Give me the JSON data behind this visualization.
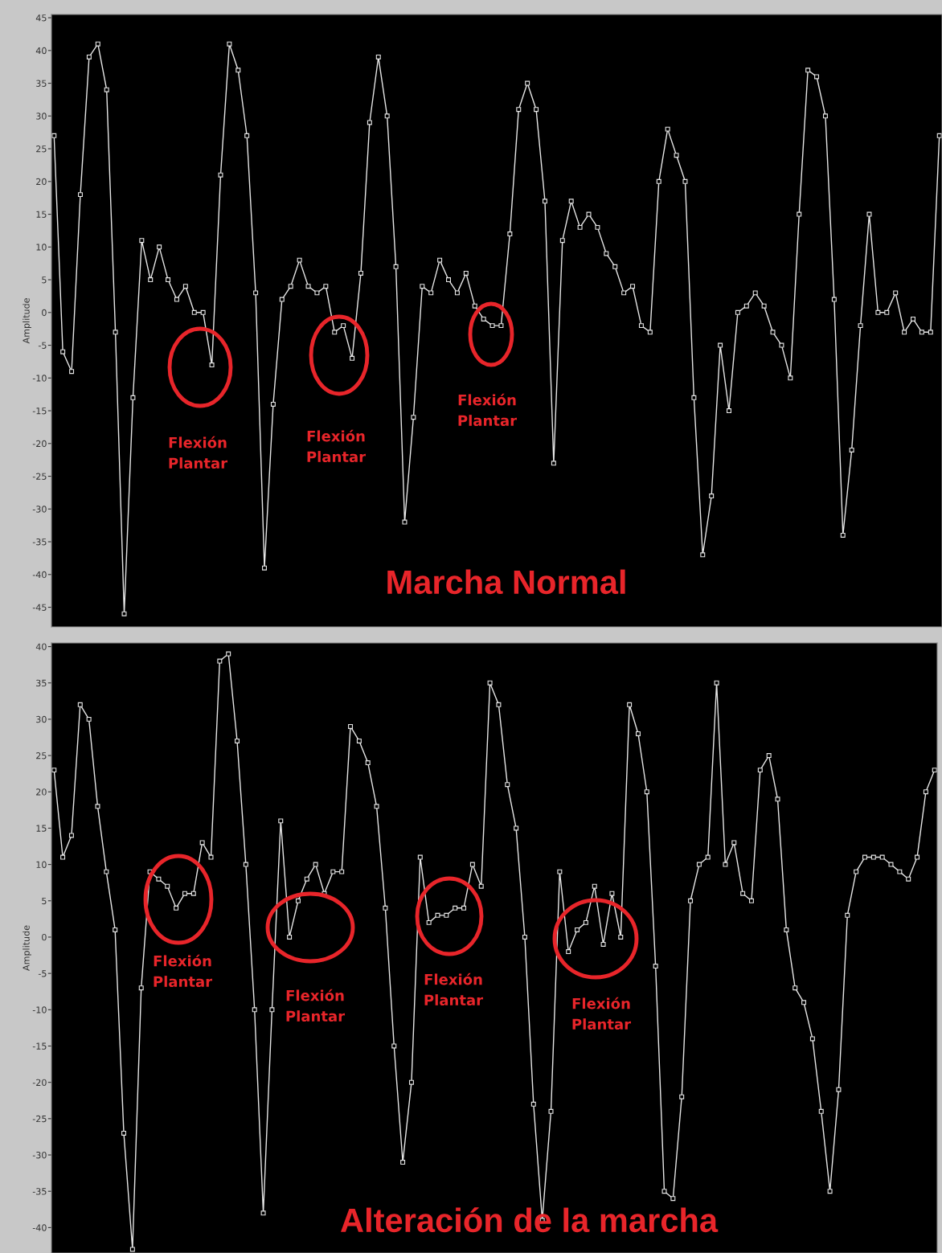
{
  "chart_data": [
    {
      "type": "line",
      "title": "Marcha Normal",
      "ylabel": "Amplitude",
      "categories": [
        null,
        null,
        null,
        null,
        null,
        null,
        null,
        null,
        null,
        null,
        null,
        null,
        null,
        null,
        null,
        null,
        null,
        null,
        null,
        null,
        null,
        null,
        null,
        null,
        null,
        null,
        null,
        null,
        null,
        null,
        null,
        null,
        null,
        null,
        null,
        null,
        null,
        null,
        null,
        null,
        null,
        null,
        null,
        null,
        null,
        null,
        null,
        null,
        null,
        null,
        null,
        null,
        null,
        null,
        null,
        null,
        null,
        null,
        null,
        null,
        null,
        null,
        null,
        null,
        null,
        null,
        null,
        null,
        null,
        null,
        null,
        null,
        null,
        null,
        null,
        null,
        null,
        null,
        null,
        null,
        null,
        null,
        null,
        null,
        null,
        null,
        null,
        null,
        null,
        null,
        null,
        null,
        null,
        null,
        null,
        null,
        null,
        null,
        null,
        null,
        null,
        null
      ],
      "series": [
        {
          "color": "#e6e6e6",
          "values": [
            27,
            -6,
            -9,
            18,
            39,
            41,
            34,
            -3,
            -46,
            -13,
            11,
            5,
            10,
            5,
            2,
            4,
            0,
            0,
            -8,
            21,
            41,
            37,
            27,
            3,
            -39,
            -14,
            2,
            4,
            8,
            4,
            3,
            4,
            -3,
            -2,
            -7,
            6,
            29,
            39,
            30,
            7,
            -32,
            -16,
            4,
            3,
            8,
            5,
            3,
            6,
            1,
            -1,
            -2,
            -2,
            12,
            31,
            35,
            31,
            17,
            -23,
            11,
            17,
            13,
            15,
            13,
            9,
            7,
            3,
            4,
            -2,
            -3,
            20,
            28,
            24,
            20,
            -13,
            -37,
            -28,
            -5,
            -15,
            0,
            1,
            3,
            1,
            -3,
            -5,
            -10,
            15,
            37,
            36,
            30,
            2,
            -34,
            -21,
            -2,
            15,
            0,
            0,
            3,
            -3,
            -1,
            -3,
            -3,
            27
          ]
        }
      ],
      "ylim": [
        -48,
        45.5
      ],
      "yticks": [
        -45,
        -40,
        -35,
        -30,
        -25,
        -20,
        -15,
        -10,
        -5,
        0,
        5,
        10,
        15,
        20,
        25,
        30,
        35,
        40,
        45
      ],
      "annotations": [
        "Flexión\nPlantar",
        "Flexión\nPlantar",
        "Flexión\nPlantar"
      ],
      "marker": "square",
      "line_style": "solid",
      "grid": false,
      "legend": false,
      "tick_labels": "y"
    },
    {
      "type": "line",
      "title": "Alteración de la marcha",
      "ylabel": "Amplitude",
      "categories": [
        null,
        null,
        null,
        null,
        null,
        null,
        null,
        null,
        null,
        null,
        null,
        null,
        null,
        null,
        null,
        null,
        null,
        null,
        null,
        null,
        null,
        null,
        null,
        null,
        null,
        null,
        null,
        null,
        null,
        null,
        null,
        null,
        null,
        null,
        null,
        null,
        null,
        null,
        null,
        null,
        null,
        null,
        null,
        null,
        null,
        null,
        null,
        null,
        null,
        null,
        null,
        null,
        null,
        null,
        null,
        null,
        null,
        null,
        null,
        null,
        null,
        null,
        null,
        null,
        null,
        null,
        null,
        null,
        null,
        null,
        null,
        null,
        null,
        null,
        null,
        null,
        null,
        null,
        null,
        null,
        null,
        null,
        null,
        null,
        null,
        null,
        null,
        null,
        null,
        null,
        null,
        null,
        null,
        null,
        null,
        null,
        null,
        null,
        null,
        null,
        null,
        null
      ],
      "series": [
        {
          "color": "#e6e6e6",
          "values": [
            23,
            11,
            14,
            32,
            30,
            18,
            9,
            1,
            -27,
            -43,
            -7,
            9,
            8,
            7,
            4,
            6,
            6,
            13,
            11,
            38,
            39,
            27,
            10,
            -10,
            -38,
            -10,
            16,
            0,
            5,
            8,
            10,
            6,
            9,
            9,
            29,
            27,
            24,
            18,
            4,
            -15,
            -31,
            -20,
            11,
            2,
            3,
            3,
            4,
            4,
            10,
            7,
            35,
            32,
            21,
            15,
            0,
            -23,
            -39,
            -24,
            9,
            -2,
            1,
            2,
            7,
            -1,
            6,
            0,
            32,
            28,
            20,
            -4,
            -35,
            -36,
            -22,
            5,
            10,
            11,
            35,
            10,
            13,
            6,
            5,
            23,
            25,
            19,
            1,
            -7,
            -9,
            -14,
            -24,
            -35,
            -21,
            3,
            9,
            11,
            11,
            11,
            10,
            9,
            8,
            11,
            20,
            23
          ]
        }
      ],
      "ylim": [
        -43.5,
        40.5
      ],
      "yticks": [
        -40,
        -35,
        -30,
        -25,
        -20,
        -15,
        -10,
        -5,
        0,
        5,
        10,
        15,
        20,
        25,
        30,
        35,
        40
      ],
      "annotations": [
        "Flexión\nPlantar",
        "Flexión\nPlantar",
        "Flexión\nPlantar",
        "Flexión\nPlantar"
      ],
      "marker": "square",
      "line_style": "solid",
      "grid": false,
      "legend": false,
      "tick_labels": "y"
    }
  ]
}
